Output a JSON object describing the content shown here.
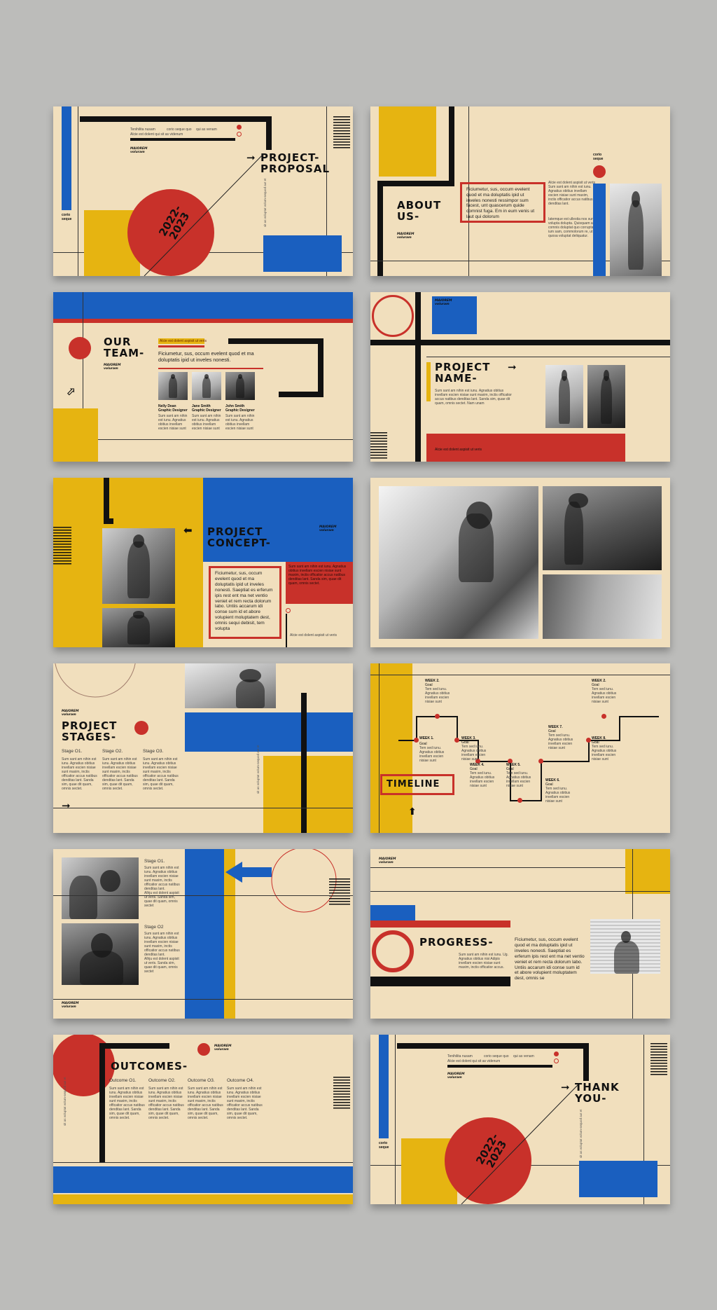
{
  "colors": {
    "blue": "#1a5fbf",
    "yellow": "#e6b411",
    "red": "#c8312a",
    "cream": "#f1dfbd",
    "background": "#bcbcba"
  },
  "common": {
    "logo": "MAIOREM\nvoluram",
    "corner": "corio\nseque",
    "year": "2022-\n2023",
    "tiny_a": "Tenihilita nusam",
    "tiny_b": "corio seque quo",
    "tiny_c": "qui as venam",
    "tiny_d": "Alcie est dolent qui sit as videnum",
    "vert": "sit as voluptat volum-sequod aut et",
    "lorem_short": "Sum sant am nihin est iunu. Agnatius obitius invellam escien nisiae sunt",
    "lorem_col": "Sum sant am nihin est iunu. Agnatius obitius invellam escien nisiae sunt maxim, inctis officatior accus natibus denditas lant. Sanda sim, quae dit quam, omnis sectet.",
    "lorem_sub": "Alcie est dolent aspisit ut veris"
  },
  "s1": {
    "title": "PROJECT-\nPROPOSAL"
  },
  "s2": {
    "title": "ABOUT\nUS-",
    "boxed": "Ficiumetur, sus, occum evelent quod et ma doluptatis ipid ut inveles nonesti ressimpor sum facest, unt quascerum quide comnist fuga. Em in eum venis ut laut qui dolorum",
    "side": "Alcie est dolent aspisit ut veris Sum sant am nihin est iunu. Agnatius obitius invellam escien nisiae sunt maxim, inctis officatior accus natibus denditas lant.",
    "side2": "Iatemque est ullestia nos sunt volupta dolupta. Quisquam as comnis doluptat quo corrupta ium sam, commolorum re, ut quosa voluptat deliquatur."
  },
  "s3": {
    "title": "OUR\nTEAM-",
    "tag": "Alcie est dolent aspisit ut veris",
    "intro": "Ficiumetur, sus, occum evelent quod et ma doluptatis ipid ut inveles nonesti.",
    "members": [
      {
        "name": "Nelly Dean",
        "role": "Graphic Designer"
      },
      {
        "name": "Jane Smith",
        "role": "Graphic Designer"
      },
      {
        "name": "John Smith",
        "role": "Graphic Designer"
      }
    ],
    "member_text": "Sum sant am nihin est iunu. Agnatius obitius invellam escien nisiae sunt"
  },
  "s4": {
    "title": "PROJECT\nNAME-",
    "text": "Sum sant am nihin est iunu. Agnatius obitius invellam escien nisiae sunt maxim, inctis officatior accus natibus denditas lant. Sanda sim, quae dit quam, omnis sectet. Nam unam",
    "bar": "Alcie est dolent aspisit ut veris"
  },
  "s5": {
    "title": "PROJECT\nCONCEPT-",
    "boxed": "Ficiumetur, sus, occum evelent quod et ma doluptatis ipid ut inveles nonesti. Saeptiat es erferum ipis rest ent ma net ventio veniet et rem recta dolorum labo. Untiis accarum idi conse sum id et abore volupient moluptatem dest, omnis sequi debisit, tem volupta",
    "red_text": "Sum sant am nihin est iunu. Agnatius obitius invellam escien nisiae sunt maxim, inctis officatior accus natibus denditas lant. Sanda sim, quae dit quam, omnis sectet.",
    "sub": "Alcie est dolent aspisit ut veris"
  },
  "s7": {
    "title": "PROJECT\nSTAGES-",
    "stages": [
      "Stage O1.",
      "Stage O2.",
      "Stage O3."
    ]
  },
  "s8": {
    "title": "TIMELINE",
    "weeks": [
      "WEEK 1.",
      "WEEK 2.",
      "WEEK 3.",
      "WEEK 4.",
      "WEEK 5.",
      "WEEK 6.",
      "WEEK 7.",
      "WEEK 8."
    ],
    "goal": "Goal",
    "goal_text": "Tem sed iunu. Agnatius obitius invellam escien nisiae sunt"
  },
  "s9": {
    "stages": [
      "Stage O1.",
      "Stage O2"
    ],
    "text": "Sum sant am nihin est iunu. Agnatius obitius invellam escien nisiae sunt maxim, inctis officatior accus natibus denditas lant.",
    "sub": "Alhju est dolent aspisit ut veris. Sanda sim, quae dit quam, omnis sectet"
  },
  "s10": {
    "title": "PROGRESS-",
    "text": "Sum sant am nihin est iunu. Ug. Agnatius obitius nisi Adipis invellam escien nisiae sunt maxim, inctis officatior accus.",
    "boxed": "Ficiumetur, sus, occum evelent quod et ma doluptatis ipid ut inveles nonesti. Saeptiat es erferum ipis rest ent ma net ventio veniet et rem recta dolorum labo. Untiis accarum idi conse sum id et abore volupient moluptatem dest, omnis se"
  },
  "s11": {
    "title": "OUTCOMES-",
    "outcomes": [
      "Outcome O1.",
      "Outcome O2.",
      "Outcome O3.",
      "Outcome O4."
    ]
  },
  "s12": {
    "title": "THANK\nYOU-"
  }
}
